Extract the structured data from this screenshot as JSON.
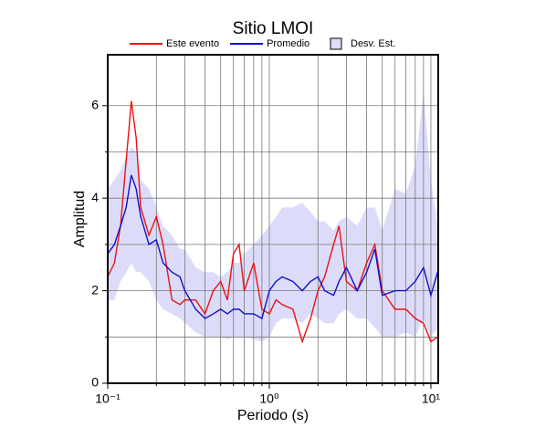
{
  "chart_data": {
    "type": "line",
    "title": "Sitio LMOI",
    "xlabel": "Periodo (s)",
    "ylabel": "Amplitud",
    "xscale": "log",
    "grid": true,
    "xlim": [
      0.1,
      11.1
    ],
    "ylim": [
      0,
      7.1
    ],
    "xticks": [
      {
        "value": 0.1,
        "label": "10⁻¹"
      },
      {
        "value": 1,
        "label": "10⁰"
      },
      {
        "value": 10,
        "label": "10¹"
      }
    ],
    "xminor": [
      0.2,
      0.3,
      0.4,
      0.5,
      0.6,
      0.7,
      0.8,
      0.9,
      2,
      3,
      4,
      5,
      6,
      7,
      8,
      9
    ],
    "yticks": [
      0,
      2,
      4,
      6
    ],
    "yminor": [
      1,
      3,
      5
    ],
    "x": [
      0.1,
      0.11,
      0.12,
      0.13,
      0.14,
      0.15,
      0.16,
      0.18,
      0.2,
      0.22,
      0.25,
      0.28,
      0.3,
      0.35,
      0.4,
      0.45,
      0.5,
      0.55,
      0.6,
      0.65,
      0.7,
      0.8,
      0.9,
      1,
      1.1,
      1.2,
      1.4,
      1.6,
      1.8,
      2,
      2.2,
      2.5,
      2.7,
      3,
      3.5,
      4,
      4.5,
      5,
      6,
      7,
      8,
      9,
      10,
      11
    ],
    "band": {
      "name": "Desv. Est.",
      "color": "#dcdcfa",
      "upper": [
        4.2,
        4.4,
        4.6,
        4.9,
        5.1,
        5.0,
        4.4,
        4.2,
        3.8,
        3.4,
        3.2,
        2.9,
        2.9,
        2.5,
        2.4,
        2.4,
        2.3,
        2.4,
        2.6,
        2.6,
        2.8,
        3.0,
        3.2,
        3.4,
        3.6,
        3.8,
        3.8,
        3.9,
        3.7,
        3.5,
        3.5,
        3.3,
        3.5,
        3.6,
        3.4,
        3.8,
        3.8,
        3.3,
        4.2,
        4.1,
        4.7,
        6.3,
        4.4,
        3.4
      ],
      "lower": [
        1.8,
        1.8,
        2.2,
        2.4,
        2.6,
        2.4,
        2.4,
        2.2,
        1.8,
        1.6,
        1.5,
        1.4,
        1.3,
        1.1,
        1.0,
        1.0,
        1.0,
        0.95,
        1.0,
        1.0,
        1.0,
        0.95,
        0.9,
        1.0,
        1.3,
        1.4,
        1.4,
        1.3,
        1.5,
        1.4,
        1.3,
        1.3,
        1.5,
        1.6,
        1.4,
        1.4,
        1.2,
        1.0,
        1.0,
        1.1,
        1.0,
        1.4,
        1.0,
        1.2
      ]
    },
    "series": [
      {
        "name": "Este evento",
        "color": "#ee1111",
        "values": [
          2.3,
          2.6,
          3.4,
          4.8,
          6.1,
          5.3,
          3.8,
          3.2,
          3.6,
          3.0,
          1.8,
          1.7,
          1.8,
          1.8,
          1.5,
          2.0,
          2.2,
          1.8,
          2.8,
          3.0,
          2.0,
          2.6,
          1.6,
          1.5,
          1.8,
          1.7,
          1.6,
          0.9,
          1.4,
          2.0,
          2.3,
          3.0,
          3.4,
          2.2,
          2.0,
          2.6,
          3.0,
          2.0,
          1.6,
          1.6,
          1.4,
          1.3,
          0.9,
          1.0
        ]
      },
      {
        "name": "Promedio",
        "color": "#1111cc",
        "values": [
          2.8,
          3.0,
          3.4,
          3.8,
          4.5,
          4.2,
          3.6,
          3.0,
          3.1,
          2.6,
          2.4,
          2.3,
          2.0,
          1.6,
          1.4,
          1.5,
          1.6,
          1.5,
          1.6,
          1.6,
          1.5,
          1.5,
          1.4,
          2.0,
          2.2,
          2.3,
          2.2,
          2.0,
          2.2,
          2.3,
          2.0,
          1.9,
          2.2,
          2.5,
          2.0,
          2.4,
          2.9,
          1.9,
          2.0,
          2.0,
          2.2,
          2.5,
          1.9,
          2.4
        ]
      }
    ]
  }
}
